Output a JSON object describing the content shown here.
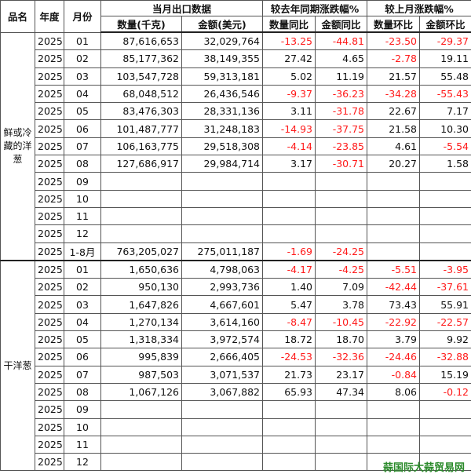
{
  "header": {
    "product": "品名",
    "year": "年度",
    "month": "月份",
    "group_current": "当月出口数据",
    "group_yoy": "较去年同期涨跌幅%",
    "group_mom": "较上月涨跌幅%",
    "qty": "数量(千克)",
    "amount": "金额(美元)",
    "qty_yoy": "数量同比",
    "amount_yoy": "金额同比",
    "qty_mom": "数量环比",
    "amount_mom": "金额环比"
  },
  "groups": [
    {
      "product": "鲜或冷藏的洋葱",
      "rows": [
        [
          "2025",
          "01",
          "87,616,653",
          "32,029,764",
          "-13.25",
          "-44.81",
          "-23.50",
          "-29.37"
        ],
        [
          "2025",
          "02",
          "85,177,362",
          "38,149,355",
          "27.42",
          "4.65",
          "-2.78",
          "19.11"
        ],
        [
          "2025",
          "03",
          "103,547,728",
          "59,313,181",
          "5.02",
          "11.19",
          "21.57",
          "55.48"
        ],
        [
          "2025",
          "04",
          "68,048,512",
          "26,436,546",
          "-9.37",
          "-36.23",
          "-34.28",
          "-55.43"
        ],
        [
          "2025",
          "05",
          "83,476,303",
          "28,331,136",
          "3.11",
          "-31.78",
          "22.67",
          "7.17"
        ],
        [
          "2025",
          "06",
          "101,487,777",
          "31,248,183",
          "-14.93",
          "-37.75",
          "21.58",
          "10.30"
        ],
        [
          "2025",
          "07",
          "106,163,775",
          "29,518,308",
          "-4.14",
          "-23.85",
          "4.61",
          "-5.54"
        ],
        [
          "2025",
          "08",
          "127,686,917",
          "29,984,714",
          "3.17",
          "-30.71",
          "20.27",
          "1.58"
        ],
        [
          "2025",
          "09",
          "",
          "",
          "",
          "",
          "",
          ""
        ],
        [
          "2025",
          "10",
          "",
          "",
          "",
          "",
          "",
          ""
        ],
        [
          "2025",
          "11",
          "",
          "",
          "",
          "",
          "",
          ""
        ],
        [
          "2025",
          "12",
          "",
          "",
          "",
          "",
          "",
          ""
        ],
        [
          "2025",
          "1-8月",
          "763,205,027",
          "275,011,187",
          "-1.69",
          "-24.25",
          "",
          ""
        ]
      ]
    },
    {
      "product": "干洋葱",
      "rows": [
        [
          "2025",
          "01",
          "1,650,636",
          "4,798,063",
          "-4.17",
          "-4.25",
          "-5.51",
          "-3.95"
        ],
        [
          "2025",
          "02",
          "950,130",
          "2,993,736",
          "1.40",
          "7.09",
          "-42.44",
          "-37.61"
        ],
        [
          "2025",
          "03",
          "1,647,826",
          "4,667,601",
          "5.47",
          "3.78",
          "73.43",
          "55.91"
        ],
        [
          "2025",
          "04",
          "1,270,134",
          "3,614,160",
          "-8.47",
          "-10.45",
          "-22.92",
          "-22.57"
        ],
        [
          "2025",
          "05",
          "1,318,334",
          "3,972,574",
          "18.72",
          "18.70",
          "3.79",
          "9.92"
        ],
        [
          "2025",
          "06",
          "995,839",
          "2,666,405",
          "-24.53",
          "-32.36",
          "-24.46",
          "-32.88"
        ],
        [
          "2025",
          "07",
          "987,503",
          "3,071,537",
          "21.73",
          "23.17",
          "-0.84",
          "15.19"
        ],
        [
          "2025",
          "08",
          "1,067,126",
          "3,067,882",
          "65.93",
          "47.34",
          "8.06",
          "-0.12"
        ],
        [
          "2025",
          "09",
          "",
          "",
          "",
          "",
          "",
          ""
        ],
        [
          "2025",
          "10",
          "",
          "",
          "",
          "",
          "",
          ""
        ],
        [
          "2025",
          "11",
          "",
          "",
          "",
          "",
          "",
          ""
        ],
        [
          "2025",
          "12",
          "",
          "",
          "",
          "",
          "",
          ""
        ]
      ]
    }
  ],
  "colors": {
    "negative": "#ff1a1a",
    "watermark": "#2a8a2a"
  },
  "watermark": "蒜国际大蒜贸易网"
}
